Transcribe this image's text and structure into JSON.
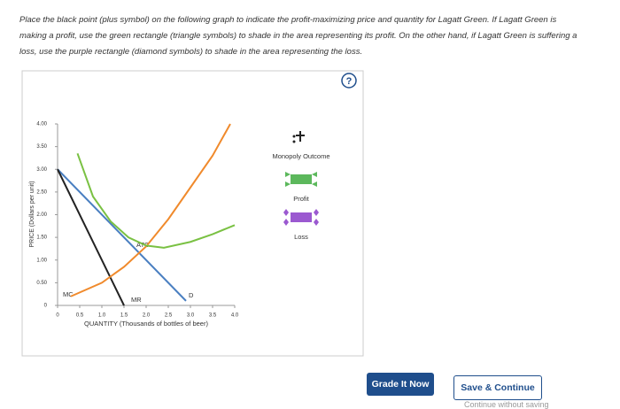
{
  "instructions": "Place the black point (plus symbol) on the following graph to indicate the profit-maximizing price and quantity for Lagatt Green. If Lagatt Green is making a profit, use the green rectangle (triangle symbols) to shade in the area representing its profit. On the other hand, if Lagatt Green is suffering a loss, use the purple rectangle (diamond symbols) to shade in the area representing the loss.",
  "help": "?",
  "graph": {
    "y_label": "PRICE (Dollars per unit)",
    "x_label": "QUANTITY (Thousands of bottles of beer)",
    "xlim": [
      0,
      4
    ],
    "ylim": [
      0,
      4
    ],
    "xticks": [
      0,
      0.5,
      {
        "value": 1,
        "label": "1.0"
      },
      1.5,
      {
        "value": 2,
        "label": "2.0"
      },
      2.5,
      {
        "value": 3,
        "label": "3.0"
      },
      3.5,
      {
        "value": 4,
        "label": "4.0"
      }
    ],
    "yticks": [
      0,
      {
        "value": 0.5,
        "label": "0.50"
      },
      {
        "value": 1,
        "label": "1.00"
      },
      {
        "value": 1.5,
        "label": "1.50"
      },
      {
        "value": 2,
        "label": "2.00"
      },
      {
        "value": 2.5,
        "label": "2.50"
      },
      {
        "value": 3,
        "label": "3.00"
      },
      {
        "value": 3.5,
        "label": "3.50"
      },
      {
        "value": 4,
        "label": "4.00"
      }
    ],
    "curves": [
      {
        "name": "D",
        "color": "#4a7fc1",
        "x": [
          0,
          2.9
        ],
        "y": [
          3,
          0.1
        ]
      },
      {
        "name": "MR",
        "color": "#222222",
        "x": [
          0,
          1.5
        ],
        "y": [
          3,
          0
        ]
      },
      {
        "name": "MC",
        "color": "#f08a2c",
        "x": [
          0.3,
          1,
          1.5,
          2,
          2.5,
          3,
          3.5,
          3.9
        ],
        "y": [
          0.2,
          0.5,
          0.85,
          1.3,
          1.9,
          2.6,
          3.3,
          4
        ]
      },
      {
        "name": "ATC",
        "color": "#7ac143",
        "x": [
          0.45,
          0.8,
          1.2,
          1.6,
          2,
          2.4,
          3,
          3.5,
          4
        ],
        "y": [
          3.35,
          2.4,
          1.85,
          1.5,
          1.32,
          1.27,
          1.4,
          1.57,
          1.77
        ]
      }
    ]
  },
  "legend": {
    "monopoly": "Monopoly Outcome",
    "profit": "Profit",
    "loss": "Loss"
  },
  "buttons": {
    "grade": "Grade It Now",
    "save": "Save & Continue",
    "continue": "Continue without saving"
  }
}
